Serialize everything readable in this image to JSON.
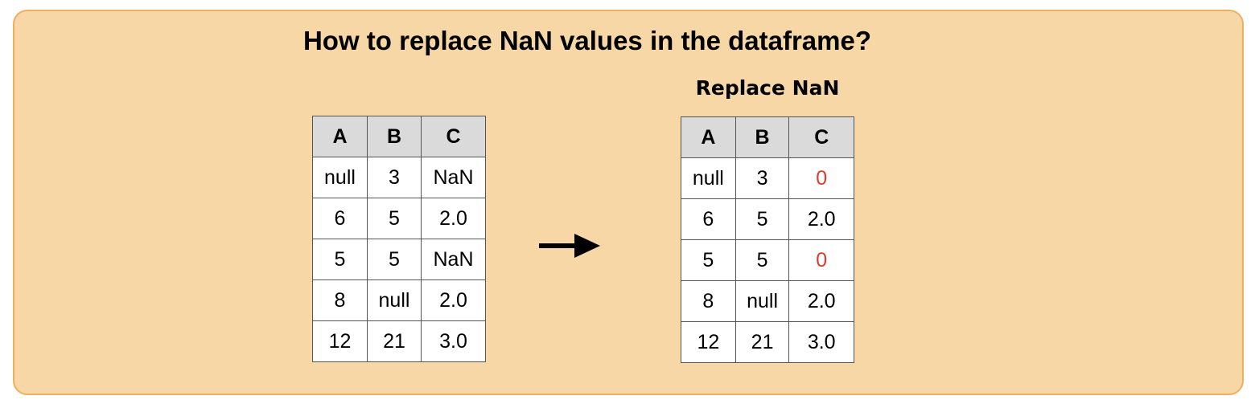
{
  "title": "How to replace NaN values in the dataframe?",
  "caption": "Replace NaN",
  "colors": {
    "panel_bg": "#f7d7a5",
    "panel_border": "#eeb05d",
    "header_bg": "#dadada",
    "replaced_value": "#e0392b"
  },
  "icons": {
    "arrow": "right-arrow-icon"
  },
  "table_before": {
    "columns": [
      "A",
      "B",
      "C"
    ],
    "rows": [
      [
        "null",
        "3",
        "NaN"
      ],
      [
        "6",
        "5",
        "2.0"
      ],
      [
        "5",
        "5",
        "NaN"
      ],
      [
        "8",
        "null",
        "2.0"
      ],
      [
        "12",
        "21",
        "3.0"
      ]
    ]
  },
  "table_after": {
    "columns": [
      "A",
      "B",
      "C"
    ],
    "rows": [
      [
        "null",
        "3",
        "0"
      ],
      [
        "6",
        "5",
        "2.0"
      ],
      [
        "5",
        "5",
        "0"
      ],
      [
        "8",
        "null",
        "2.0"
      ],
      [
        "12",
        "21",
        "3.0"
      ]
    ]
  }
}
